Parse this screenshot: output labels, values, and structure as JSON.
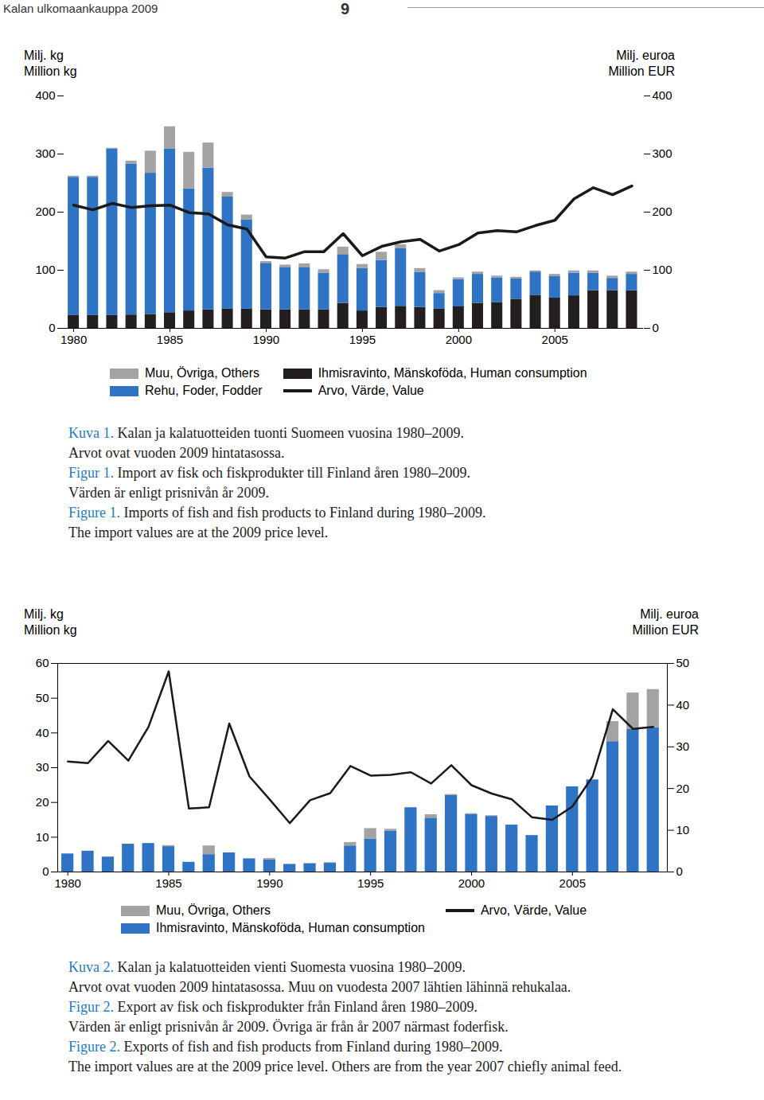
{
  "header": {
    "title": "Kalan ulkomaankauppa 2009",
    "page": 9
  },
  "chart_data": [
    {
      "type": "bar",
      "stacked": true,
      "grid": false,
      "x": [
        1980,
        1981,
        1982,
        1983,
        1984,
        1985,
        1986,
        1987,
        1988,
        1989,
        1990,
        1991,
        1992,
        1993,
        1994,
        1995,
        1996,
        1997,
        1998,
        1999,
        2000,
        2001,
        2002,
        2003,
        2004,
        2005,
        2006,
        2007,
        2008,
        2009
      ],
      "xlim": [
        1979.5,
        2009.6
      ],
      "xticks": [
        1980,
        1985,
        1990,
        1995,
        2000,
        2005
      ],
      "ylabel": [
        "Milj. kg",
        "Million kg"
      ],
      "ylim": [
        0,
        400
      ],
      "yticks": [
        0,
        100,
        200,
        300,
        400
      ],
      "y2label": [
        "Milj. euroa",
        "Million EUR"
      ],
      "y2lim": [
        0,
        400
      ],
      "y2ticks": [
        0,
        100,
        200,
        300,
        400
      ],
      "series": [
        {
          "name": "Ihmisravinto, Mänskoföda, Human consumption",
          "type": "bar",
          "color": "#231f20",
          "values": [
            22,
            22,
            22,
            23,
            24,
            27,
            30,
            32,
            33,
            33,
            32,
            32,
            32,
            32,
            43,
            30,
            36,
            38,
            36,
            33,
            37,
            43,
            44,
            50,
            57,
            52,
            56,
            65,
            65,
            65
          ]
        },
        {
          "name": "Rehu, Foder, Fodder",
          "type": "bar",
          "color": "#2e73c4",
          "values": [
            238,
            238,
            287,
            260,
            243,
            282,
            210,
            244,
            193,
            154,
            80,
            73,
            73,
            63,
            84,
            73,
            81,
            99,
            60,
            27,
            47,
            50,
            43,
            35,
            40,
            37,
            39,
            30,
            21,
            28
          ]
        },
        {
          "name": "Muu, Övriga, Others",
          "type": "bar",
          "color": "#a3a3a3",
          "values": [
            2,
            2,
            1,
            5,
            38,
            38,
            63,
            43,
            8,
            8,
            3,
            4,
            6,
            6,
            13,
            7,
            14,
            7,
            7,
            5,
            3,
            4,
            3,
            3,
            2,
            4,
            4,
            4,
            4,
            4
          ]
        },
        {
          "name": "Arvo, Värde, Value",
          "type": "line",
          "axis": "y2",
          "color": "#1a1a1a",
          "values": [
            212,
            204,
            215,
            208,
            211,
            212,
            199,
            197,
            178,
            171,
            123,
            121,
            132,
            132,
            163,
            125,
            141,
            149,
            153,
            133,
            144,
            164,
            168,
            166,
            177,
            186,
            223,
            242,
            230,
            245
          ]
        }
      ],
      "caption": [
        {
          "label": "Kuva 1.",
          "lines": [
            "Kalan ja kalatuotteiden tuonti Suomeen vuosina 1980–2009.",
            "Arvot ovat vuoden 2009 hintatasossa."
          ]
        },
        {
          "label": "Figur 1.",
          "lines": [
            "Import av fisk och fiskprodukter till Finland åren 1980–2009.",
            "Värden är enligt prisnivån år 2009."
          ]
        },
        {
          "label": "Figure 1.",
          "lines": [
            "Imports of fish and fish products to Finland during 1980–2009.",
            "The import values are at the 2009 price level."
          ]
        }
      ]
    },
    {
      "type": "bar",
      "stacked": true,
      "grid": false,
      "x": [
        1980,
        1981,
        1982,
        1983,
        1984,
        1985,
        1986,
        1987,
        1988,
        1989,
        1990,
        1991,
        1992,
        1993,
        1994,
        1995,
        1996,
        1997,
        1998,
        1999,
        2000,
        2001,
        2002,
        2003,
        2004,
        2005,
        2006,
        2007,
        2008,
        2009
      ],
      "xlim": [
        1979.5,
        2009.7
      ],
      "xticks": [
        1980,
        1985,
        1990,
        1995,
        2000,
        2005
      ],
      "ylabel": [
        "Milj. kg",
        "Million kg"
      ],
      "ylim": [
        0,
        60
      ],
      "yticks": [
        0,
        10,
        20,
        30,
        40,
        50,
        60
      ],
      "y2label": [
        "Milj. euroa",
        "Million EUR"
      ],
      "y2lim": [
        0,
        50
      ],
      "y2ticks": [
        0,
        10,
        20,
        30,
        40,
        50
      ],
      "series": [
        {
          "name": "Ihmisravinto, Mänskoföda, Human consumption",
          "type": "bar",
          "color": "#2e73c4",
          "values": [
            5.2,
            6,
            4.3,
            8,
            8.2,
            7.3,
            2.8,
            5,
            5.5,
            3.8,
            3.5,
            2.2,
            2.4,
            2.5,
            7.5,
            9.5,
            11.8,
            18.5,
            15.5,
            22,
            16.5,
            16,
            13.5,
            10.5,
            19,
            24.5,
            26.5,
            37.5,
            41,
            41.5
          ]
        },
        {
          "name": "Muu, Övriga, Others",
          "type": "bar",
          "color": "#a3a3a3",
          "values": [
            0,
            0,
            0,
            0,
            0,
            0.3,
            0,
            2.5,
            0,
            0,
            0.4,
            0,
            0,
            0.2,
            1,
            3,
            0.5,
            0,
            1,
            0.3,
            0.3,
            0.2,
            0,
            0,
            0,
            0,
            0,
            5.8,
            10.5,
            11
          ]
        },
        {
          "name": "Arvo, Värde, Value",
          "type": "line",
          "axis": "y2",
          "color": "#1a1a1a",
          "values": [
            26.5,
            26.1,
            31.4,
            26.7,
            34.8,
            48.1,
            15.2,
            15.5,
            35.6,
            22.9,
            17.4,
            11.7,
            17.2,
            18.9,
            25.4,
            23.1,
            23.3,
            23.9,
            21.2,
            25.6,
            20.8,
            18.8,
            17.4,
            13.1,
            12.5,
            15.7,
            22.9,
            39,
            34.3,
            34.8
          ]
        }
      ],
      "caption": [
        {
          "label": "Kuva 2.",
          "lines": [
            "Kalan ja kalatuotteiden vienti Suomesta vuosina 1980–2009.",
            "Arvot ovat vuoden 2009 hintatasossa. Muu on vuodesta 2007 lähtien lähinnä rehukalaa."
          ]
        },
        {
          "label": "Figur 2.",
          "lines": [
            "Export av fisk och fiskprodukter från Finland åren 1980–2009.",
            "Värden är enligt prisnivån år 2009. Övriga är från år 2007 närmast foderfisk."
          ]
        },
        {
          "label": "Figure 2.",
          "lines": [
            "Exports of fish and fish products from Finland during 1980–2009.",
            "The import values are at the 2009 price level. Others are from the year 2007 chiefly animal feed."
          ]
        }
      ]
    }
  ]
}
